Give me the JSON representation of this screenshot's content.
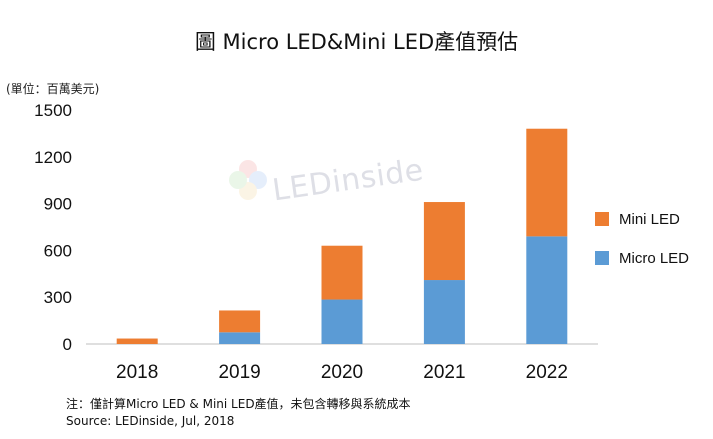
{
  "unit_label": "(單位：百萬美元)",
  "footnote": "注：僅計算Micro LED & Mini LED產值，未包含轉移與系統成本",
  "source": "Source: LEDinside, Jul, 2018",
  "watermark_text": "LEDinside",
  "colors": {
    "mini": "#ED7D31",
    "micro": "#5B9BD5"
  },
  "chart_data": {
    "type": "bar",
    "stacked": true,
    "title": "圖 Micro LED&Mini LED產值預估",
    "xlabel": "",
    "ylabel": "",
    "categories": [
      "2018",
      "2019",
      "2020",
      "2021",
      "2022"
    ],
    "series": [
      {
        "name": "Micro LED",
        "values": [
          0,
          75,
          285,
          410,
          690
        ]
      },
      {
        "name": "Mini LED",
        "values": [
          35,
          140,
          345,
          500,
          690
        ]
      }
    ],
    "ylim": [
      0,
      1500
    ],
    "yticks": [
      "0",
      "300",
      "600",
      "900",
      "1200",
      "1500"
    ],
    "legend_order": [
      "Mini LED",
      "Micro LED"
    ],
    "legend_position": "right",
    "grid": false
  }
}
